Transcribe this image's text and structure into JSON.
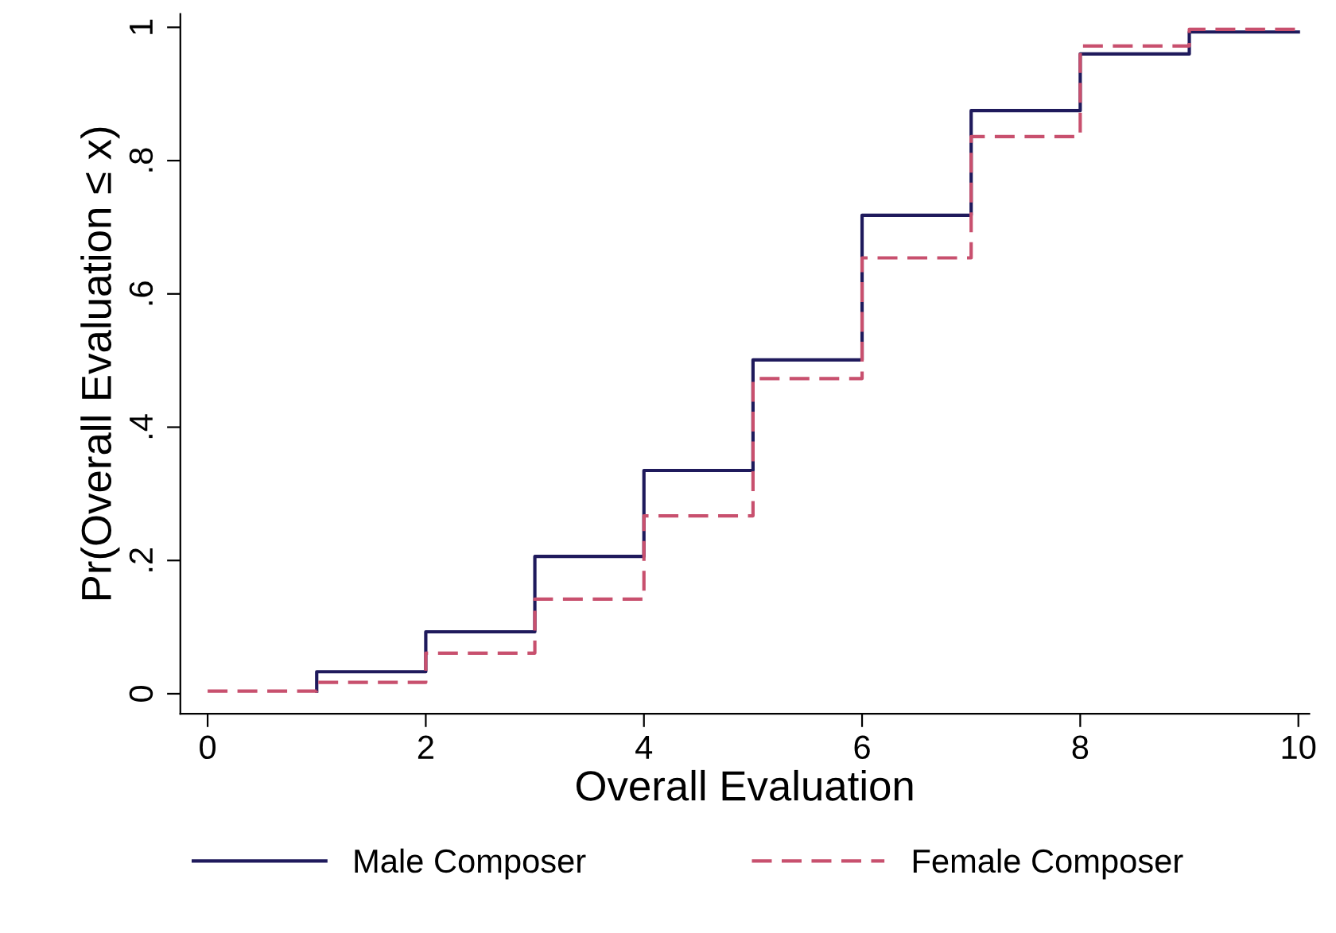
{
  "chart_data": {
    "type": "step",
    "xlabel": "Overall Evaluation",
    "ylabel": "Pr(Overall Evaluation ≤ x)",
    "xlim": [
      -0.25,
      10.1
    ],
    "xticks": [
      0,
      2,
      4,
      6,
      8,
      10
    ],
    "ylim": [
      -0.03,
      1.02
    ],
    "yticks": [
      0,
      {
        "value": 0.2,
        "label": ".2"
      },
      {
        "value": 0.4,
        "label": ".4"
      },
      {
        "value": 0.6,
        "label": ".6"
      },
      {
        "value": 0.8,
        "label": ".8"
      },
      1
    ],
    "grid": false,
    "legend": "bottom",
    "series": [
      {
        "name": "Male Composer",
        "color": "#1f1a5c",
        "line_style": "solid",
        "x": [
          1,
          1,
          2,
          3,
          4,
          5,
          6,
          7,
          8,
          9,
          10
        ],
        "values": [
          0.004,
          0.033,
          0.093,
          0.206,
          0.335,
          0.501,
          0.718,
          0.875,
          0.96,
          0.993,
          0.993
        ]
      },
      {
        "name": "Female Composer",
        "color": "#c8506e",
        "line_style": "dashed",
        "x": [
          0,
          1,
          2,
          3,
          4,
          5,
          6,
          7,
          8,
          9,
          10
        ],
        "values": [
          0.004,
          0.017,
          0.061,
          0.142,
          0.267,
          0.473,
          0.654,
          0.836,
          0.972,
          0.997,
          0.997
        ]
      }
    ]
  }
}
